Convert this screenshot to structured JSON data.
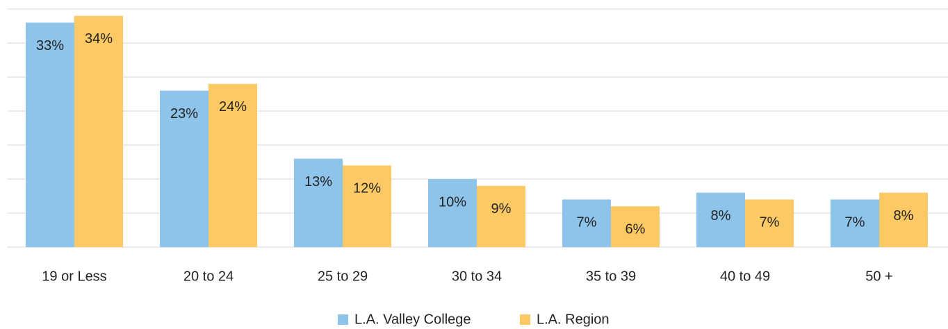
{
  "chart_data": {
    "type": "bar",
    "categories": [
      "19 or Less",
      "20 to 24",
      "25 to 29",
      "30 to 34",
      "35 to 39",
      "40 to 49",
      "50 +"
    ],
    "series": [
      {
        "name": "L.A. Valley College",
        "color": "#8ec3ea",
        "values": [
          33,
          23,
          13,
          10,
          7,
          8,
          7
        ],
        "value_labels": [
          "33%",
          "23%",
          "13%",
          "10%",
          "7%",
          "8%",
          "7%"
        ]
      },
      {
        "name": "L.A. Region",
        "color": "#fdc964",
        "values": [
          34,
          24,
          12,
          9,
          6,
          7,
          8
        ],
        "value_labels": [
          "34%",
          "24%",
          "12%",
          "9%",
          "6%",
          "7%",
          "8%"
        ]
      }
    ],
    "ylim": [
      0,
      35
    ],
    "yticks": [
      0,
      5,
      10,
      15,
      20,
      25,
      30,
      35
    ],
    "grid": true,
    "legend": "bottom"
  }
}
